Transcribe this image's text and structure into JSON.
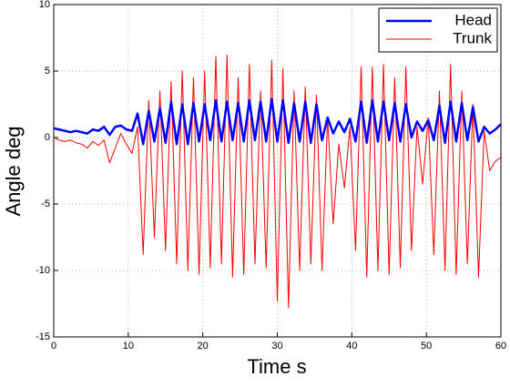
{
  "chart_data": {
    "type": "line",
    "xlabel": "Time  s",
    "ylabel": "Angle  deg",
    "xlim": [
      0,
      60
    ],
    "ylim": [
      -15,
      10
    ],
    "xticks": [
      0,
      10,
      20,
      30,
      40,
      50,
      60
    ],
    "yticks": [
      -15,
      -10,
      -5,
      0,
      5,
      10
    ],
    "grid": true,
    "legend": "northeast",
    "x": [
      0,
      0.75,
      1.5,
      2.25,
      3,
      3.75,
      4.5,
      5.25,
      6,
      6.75,
      7.5,
      8.25,
      9,
      9.75,
      10.5,
      11.25,
      12,
      12.75,
      13.5,
      14.25,
      15,
      15.75,
      16.5,
      17.25,
      18,
      18.75,
      19.5,
      20.25,
      21,
      21.75,
      22.5,
      23.25,
      24,
      24.75,
      25.5,
      26.25,
      27,
      27.75,
      28.5,
      29.25,
      30,
      30.75,
      31.5,
      32.25,
      33,
      33.75,
      34.5,
      35.25,
      36,
      36.75,
      37.5,
      38.25,
      39,
      39.75,
      40.5,
      41.25,
      42,
      42.75,
      43.5,
      44.25,
      45,
      45.75,
      46.5,
      47.25,
      48,
      48.75,
      49.5,
      50.25,
      51,
      51.75,
      52.5,
      53.25,
      54,
      54.75,
      55.5,
      56.25,
      57,
      57.75,
      58.5,
      59.25,
      60
    ],
    "series": [
      {
        "name": "Head",
        "color": "#0000ff",
        "width": 2.5,
        "values": [
          0.7,
          0.6,
          0.5,
          0.4,
          0.5,
          0.4,
          0.3,
          0.6,
          0.5,
          0.8,
          0.2,
          0.8,
          0.9,
          0.6,
          0.5,
          1.8,
          -0.5,
          2,
          -0.3,
          2.2,
          -0.4,
          2.7,
          -0.5,
          2.5,
          -0.5,
          2.6,
          -0.3,
          2.5,
          -0.2,
          2.8,
          -0.3,
          2.7,
          -0.2,
          2.6,
          -0.3,
          2.8,
          -0.2,
          2.7,
          -0.3,
          2.9,
          -0.3,
          2.8,
          -0.4,
          2.6,
          -0.3,
          2.7,
          -0.4,
          2.5,
          -0.2,
          1.5,
          0.3,
          1.2,
          0.4,
          1.4,
          -0.3,
          2.7,
          -0.4,
          2.8,
          -0.3,
          2.7,
          -0.2,
          2.6,
          -0.3,
          2.5,
          0,
          1.2,
          0.5,
          1.3,
          -0.2,
          2.4,
          -0.4,
          2.7,
          -0.3,
          2.6,
          -0.2,
          2.3,
          -0.3,
          0.8,
          0.3,
          0.6,
          1.0
        ]
      },
      {
        "name": "Trunk",
        "color": "#ff0000",
        "width": 1,
        "values": [
          0,
          -0.2,
          -0.3,
          -0.2,
          -0.4,
          -0.5,
          -0.8,
          -0.3,
          -0.6,
          -0.2,
          -1.9,
          -0.8,
          0.3,
          -0.5,
          -1.2,
          0.8,
          -8.8,
          2.8,
          -7.5,
          3.5,
          -8.5,
          4.2,
          -9.5,
          5.0,
          -10,
          4.5,
          -10.3,
          5,
          -9.8,
          6.1,
          -9.5,
          6.2,
          -10.5,
          4.5,
          -10.3,
          5.5,
          -9.5,
          3.5,
          -9.8,
          5.8,
          -12.3,
          5.2,
          -12.8,
          3.5,
          -10,
          3.8,
          -9.5,
          3.2,
          -10,
          1.5,
          -6.5,
          -0.5,
          -3.8,
          0.8,
          -8.5,
          5.3,
          -10.5,
          5.3,
          -10,
          5.5,
          -10.3,
          4.5,
          -9.8,
          5.3,
          -8.5,
          0.8,
          -3.5,
          1.5,
          -8.8,
          3.5,
          -10,
          5.5,
          -10.3,
          3.5,
          -9.5,
          2.5,
          -10.5,
          0.5,
          -2.5,
          -1.8,
          -1.5
        ]
      }
    ]
  }
}
